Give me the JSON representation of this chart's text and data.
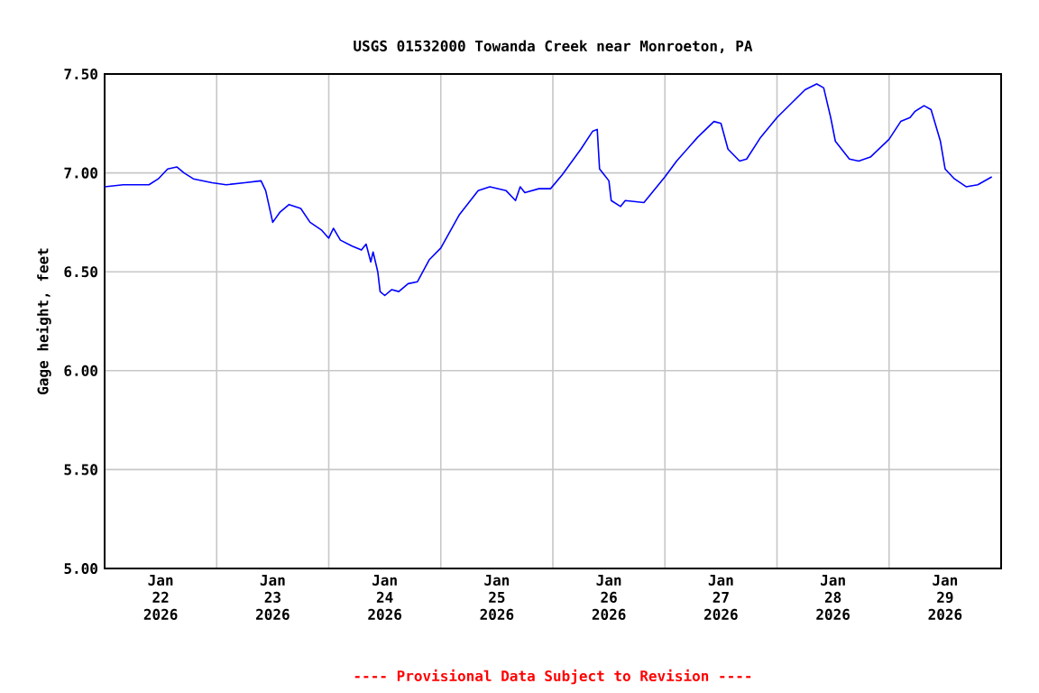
{
  "chart_data": {
    "type": "line",
    "title": "USGS 01532000 Towanda Creek near Monroeton, PA",
    "ylabel": "Gage height, feet",
    "annotations": [
      "---- Provisional Data Subject to Revision ----"
    ],
    "x": [
      "2026-01-22T00:00",
      "2026-01-22T04:00",
      "2026-01-22T09:30",
      "2026-01-22T11:30",
      "2026-01-22T13:30",
      "2026-01-22T15:30",
      "2026-01-22T17:00",
      "2026-01-22T19:00",
      "2026-01-22T23:00",
      "2026-01-23T02:00",
      "2026-01-23T06:00",
      "2026-01-23T09:30",
      "2026-01-23T10:30",
      "2026-01-23T12:00",
      "2026-01-23T13:30",
      "2026-01-23T15:30",
      "2026-01-23T18:00",
      "2026-01-23T20:00",
      "2026-01-23T22:30",
      "2026-01-24T00:00",
      "2026-01-24T01:00",
      "2026-01-24T02:30",
      "2026-01-24T05:00",
      "2026-01-24T07:00",
      "2026-01-24T08:00",
      "2026-01-24T09:00",
      "2026-01-24T09:30",
      "2026-01-24T10:30",
      "2026-01-24T11:00",
      "2026-01-24T12:00",
      "2026-01-24T13:30",
      "2026-01-24T15:00",
      "2026-01-24T17:00",
      "2026-01-24T19:00",
      "2026-01-24T21:30",
      "2026-01-25T00:00",
      "2026-01-25T04:00",
      "2026-01-25T08:00",
      "2026-01-25T10:30",
      "2026-01-25T14:00",
      "2026-01-25T16:00",
      "2026-01-25T17:00",
      "2026-01-25T18:00",
      "2026-01-25T21:00",
      "2026-01-25T23:30",
      "2026-01-26T02:00",
      "2026-01-26T06:00",
      "2026-01-26T08:30",
      "2026-01-26T09:30",
      "2026-01-26T10:00",
      "2026-01-26T11:00",
      "2026-01-26T12:00",
      "2026-01-26T12:30",
      "2026-01-26T14:30",
      "2026-01-26T15:30",
      "2026-01-26T19:30",
      "2026-01-27T00:00",
      "2026-01-27T02:30",
      "2026-01-27T07:00",
      "2026-01-27T10:30",
      "2026-01-27T12:00",
      "2026-01-27T13:30",
      "2026-01-27T16:00",
      "2026-01-27T17:30",
      "2026-01-27T20:30",
      "2026-01-28T00:00",
      "2026-01-28T06:00",
      "2026-01-28T08:30",
      "2026-01-28T10:00",
      "2026-01-28T11:30",
      "2026-01-28T12:30",
      "2026-01-28T15:30",
      "2026-01-28T17:30",
      "2026-01-28T20:00",
      "2026-01-29T00:00",
      "2026-01-29T02:30",
      "2026-01-29T04:30",
      "2026-01-29T05:30",
      "2026-01-29T07:30",
      "2026-01-29T09:00",
      "2026-01-29T11:00",
      "2026-01-29T12:00",
      "2026-01-29T14:00",
      "2026-01-29T16:30",
      "2026-01-29T19:00",
      "2026-01-29T22:00"
    ],
    "values": [
      6.93,
      6.94,
      6.94,
      6.97,
      7.02,
      7.03,
      7.0,
      6.97,
      6.95,
      6.94,
      6.95,
      6.96,
      6.91,
      6.75,
      6.8,
      6.84,
      6.82,
      6.75,
      6.71,
      6.67,
      6.72,
      6.66,
      6.63,
      6.61,
      6.64,
      6.55,
      6.6,
      6.5,
      6.4,
      6.38,
      6.41,
      6.4,
      6.44,
      6.45,
      6.56,
      6.62,
      6.79,
      6.91,
      6.93,
      6.91,
      6.86,
      6.93,
      6.9,
      6.92,
      6.92,
      6.99,
      7.12,
      7.21,
      7.22,
      7.02,
      6.99,
      6.96,
      6.86,
      6.83,
      6.86,
      6.85,
      6.98,
      7.06,
      7.18,
      7.26,
      7.25,
      7.12,
      7.06,
      7.07,
      7.18,
      7.28,
      7.42,
      7.45,
      7.43,
      7.28,
      7.16,
      7.07,
      7.06,
      7.08,
      7.17,
      7.26,
      7.28,
      7.31,
      7.34,
      7.32,
      7.16,
      7.02,
      6.97,
      6.93,
      6.94,
      6.98
    ],
    "color": "#0000ff",
    "grid": true,
    "xlim": [
      "2026-01-22T00:00",
      "2026-01-30T00:00"
    ],
    "xticks": [
      {
        "value": "2026-01-22T12:00",
        "label": "Jan 22 2026"
      },
      {
        "value": "2026-01-23T00:00",
        "label": null
      },
      {
        "value": "2026-01-23T12:00",
        "label": "Jan 23 2026"
      },
      {
        "value": "2026-01-24T00:00",
        "label": null
      },
      {
        "value": "2026-01-24T12:00",
        "label": "Jan 24 2026"
      },
      {
        "value": "2026-01-25T00:00",
        "label": null
      },
      {
        "value": "2026-01-25T12:00",
        "label": "Jan 25 2026"
      },
      {
        "value": "2026-01-26T00:00",
        "label": null
      },
      {
        "value": "2026-01-26T12:00",
        "label": "Jan 26 2026"
      },
      {
        "value": "2026-01-27T00:00",
        "label": null
      },
      {
        "value": "2026-01-27T12:00",
        "label": "Jan 27 2026"
      },
      {
        "value": "2026-01-28T00:00",
        "label": null
      },
      {
        "value": "2026-01-28T12:00",
        "label": "Jan 28 2026"
      },
      {
        "value": "2026-01-29T00:00",
        "label": null
      },
      {
        "value": "2026-01-29T12:00",
        "label": "Jan 29 2026"
      }
    ],
    "ylim": [
      5.0,
      7.5
    ],
    "yticks": [
      {
        "value": 5.0,
        "label": "5.00"
      },
      {
        "value": 5.5,
        "label": "5.50"
      },
      {
        "value": 6.0,
        "label": "6.00"
      },
      {
        "value": 6.5,
        "label": "6.50"
      },
      {
        "value": 7.0,
        "label": "7.00"
      },
      {
        "value": 7.5,
        "label": "7.50"
      }
    ]
  }
}
